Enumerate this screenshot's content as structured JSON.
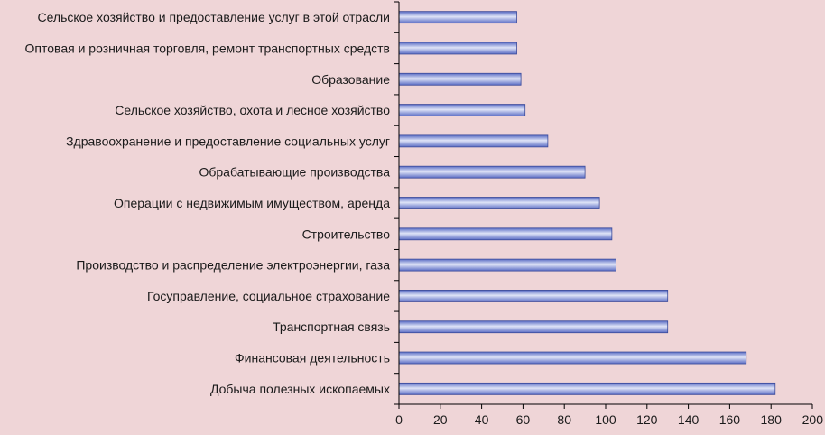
{
  "chart_data": {
    "type": "bar",
    "orientation": "horizontal",
    "categories": [
      "Сельское хозяйство и предоставление услуг в этой отрасли",
      "Оптовая и розничная торговля, ремонт транспортных средств",
      "Образование",
      "Сельское хозяйство, охота и лесное хозяйство",
      "Здравоохранение и предоставление социальных услуг",
      "Обрабатывающие производства",
      "Операции с недвижимым имуществом, аренда",
      "Строительство",
      "Производство и распределение электроэнергии, газа",
      "Госуправление, социальное страхование",
      "Транспортная связь",
      "Финансовая деятельность",
      "Добыча полезных ископаемых"
    ],
    "values": [
      57,
      57,
      59,
      61,
      72,
      90,
      97,
      103,
      105,
      130,
      130,
      168,
      182
    ],
    "xlim": [
      0,
      200
    ],
    "xticks": [
      "0",
      "20",
      "40",
      "60",
      "80",
      "100",
      "120",
      "140",
      "160",
      "180",
      "200"
    ],
    "title": "",
    "xlabel": "",
    "ylabel": "",
    "grid": false,
    "legend": "none",
    "colors": {
      "background": "#efd5d7",
      "bar_dark": "#5a6cc4",
      "bar_light": "#dfe4f7",
      "bar_stroke": "#3a4a9a",
      "axis": "#000000",
      "text": "#1a1a1a"
    }
  }
}
